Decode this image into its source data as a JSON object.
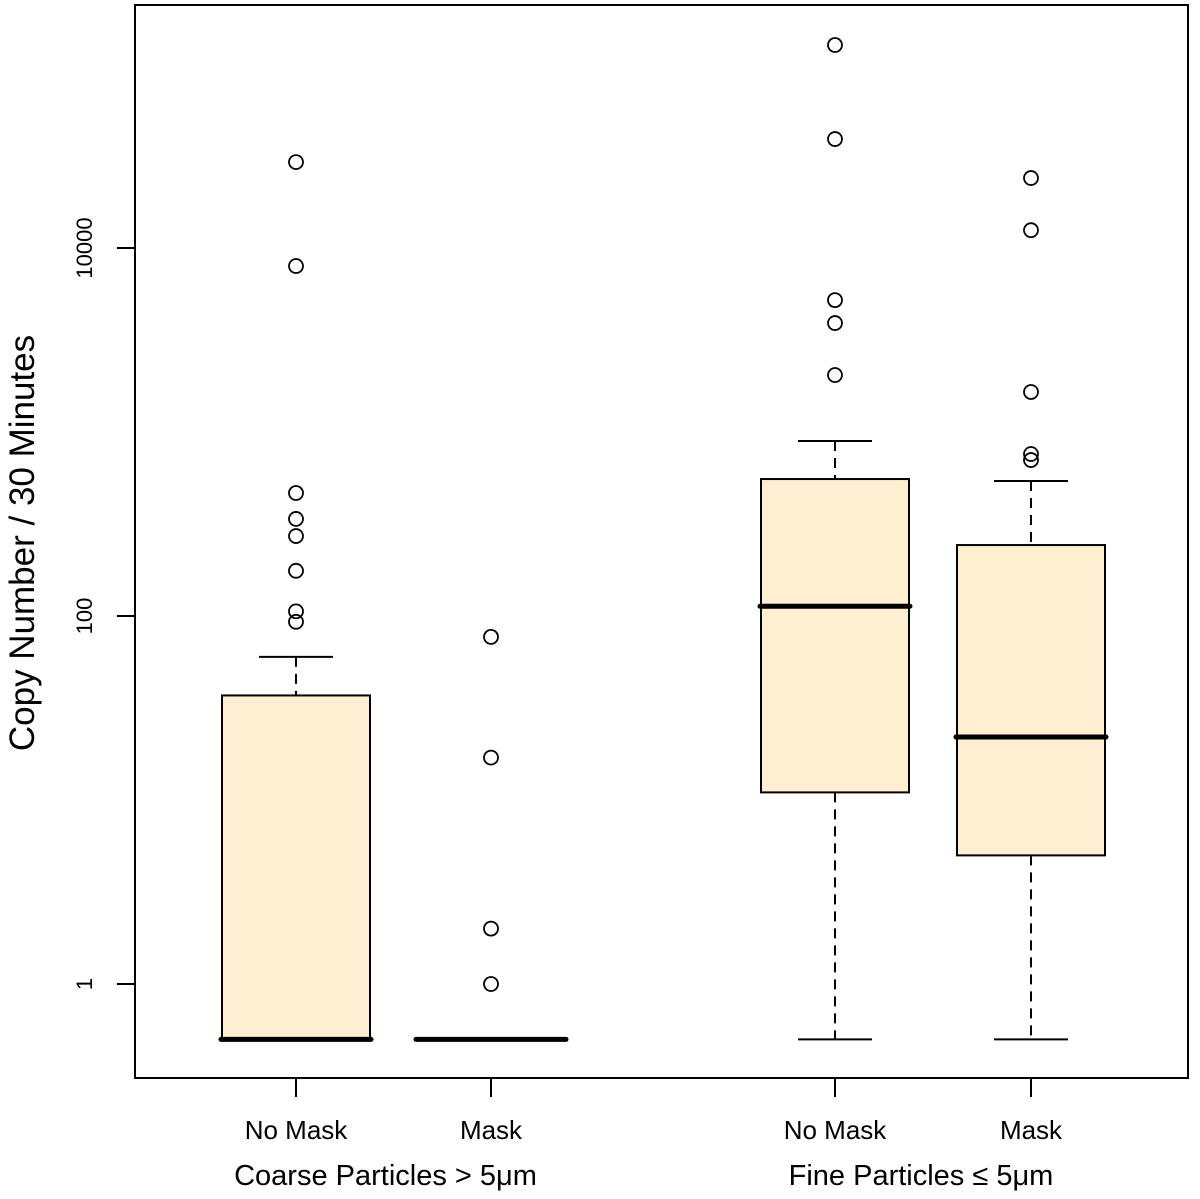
{
  "chart_data": {
    "type": "boxplot",
    "title": "",
    "xlabel": "",
    "ylabel": "Copy Number / 30 Minutes",
    "yscale": "log10",
    "ylim": [
      0.38,
      650000
    ],
    "yticks": [
      1,
      100,
      10000
    ],
    "ytick_labels": [
      "1",
      "100",
      "10000"
    ],
    "grid": false,
    "box_fill": "#FFEFD0",
    "groups": [
      {
        "label": "Coarse Particles > 5μm"
      },
      {
        "label": "Fine Particles ≤ 5μm"
      }
    ],
    "boxes": [
      {
        "label": "No Mask",
        "group": 0,
        "min": 0.5,
        "q1": 0.5,
        "median": 0.5,
        "q3": 37,
        "max": 60,
        "outliers": [
          29300,
          7980,
          466,
          337,
          272,
          176,
          106,
          93
        ]
      },
      {
        "label": "Mask",
        "group": 0,
        "min": 0.5,
        "q1": 0.5,
        "median": 0.5,
        "q3": 0.5,
        "max": 0.5,
        "outliers": [
          77,
          17,
          2,
          1
        ]
      },
      {
        "label": "No Mask",
        "group": 1,
        "min": 0.5,
        "q1": 11,
        "median": 113,
        "q3": 555,
        "max": 894,
        "outliers": [
          126800,
          39100,
          5210,
          3910,
          2040
        ]
      },
      {
        "label": "Mask",
        "group": 1,
        "min": 0.5,
        "q1": 5,
        "median": 22,
        "q3": 243,
        "max": 542,
        "outliers": [
          24000,
          12500,
          1650,
          759,
          704
        ]
      }
    ]
  }
}
